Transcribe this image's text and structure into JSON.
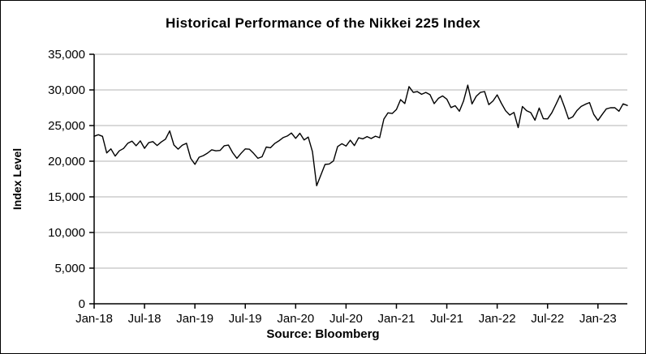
{
  "chart": {
    "title": "Historical Performance of the Nikkei 225 Index",
    "y_axis_title": "Index Level",
    "source": "Source: Bloomberg"
  },
  "chart_data": {
    "type": "line",
    "title": "Historical Performance of the Nikkei 225 Index",
    "xlabel": "",
    "ylabel": "Index Level",
    "source": "Source: Bloomberg",
    "ylim": [
      0,
      35000
    ],
    "ytick_interval": 5000,
    "grid": true,
    "legend": "none",
    "line_color": "#000000",
    "gridline_color": "#b3b3b3",
    "axis_color": "#000000",
    "sampling": "semi-monthly points from Jan-2018 to Apr-2023",
    "points_per_tick": 12,
    "x_tick_labels": [
      "Jan-18",
      "Jul-18",
      "Jan-19",
      "Jul-19",
      "Jan-20",
      "Jul-20",
      "Jan-21",
      "Jul-21",
      "Jan-22",
      "Jul-22",
      "Jan-23"
    ],
    "series": [
      {
        "name": "Nikkei 225 Index",
        "values": [
          23500,
          23714,
          23486,
          21154,
          21724,
          20720,
          21454,
          21779,
          22508,
          22818,
          22171,
          22852,
          21812,
          22597,
          22746,
          22204,
          22707,
          23095,
          24246,
          22271,
          21688,
          22244,
          22510,
          20400,
          19560,
          20555,
          20788,
          21139,
          21603,
          21451,
          21509,
          22169,
          22258,
          21188,
          20411,
          21117,
          21730,
          21686,
          21087,
          20405,
          20620,
          21988,
          21885,
          22472,
          22851,
          23303,
          23530,
          23952,
          23205,
          23917,
          22972,
          23386,
          21344,
          16553,
          18065,
          19550,
          19619,
          20037,
          22062,
          22456,
          22122,
          22945,
          22195,
          23289,
          23138,
          23455,
          23185,
          23507,
          23295,
          25907,
          26787,
          26688,
          27258,
          28633,
          28091,
          30468,
          29664,
          29767,
          29389,
          29643,
          29331,
          28084,
          28814,
          29161,
          28707,
          27528,
          27781,
          27013,
          28452,
          30670,
          28029,
          29106,
          29647,
          29777,
          27936,
          28460,
          29302,
          28124,
          27078,
          26476,
          26845,
          24718,
          27666,
          27093,
          26819,
          25749,
          27458,
          25963,
          25936,
          26788,
          27993,
          29223,
          27661,
          25937,
          26216,
          27105,
          27678,
          27990,
          28226,
          26568,
          25717,
          26553,
          27346,
          27502,
          27516,
          27010,
          28041,
          27820
        ]
      }
    ]
  }
}
